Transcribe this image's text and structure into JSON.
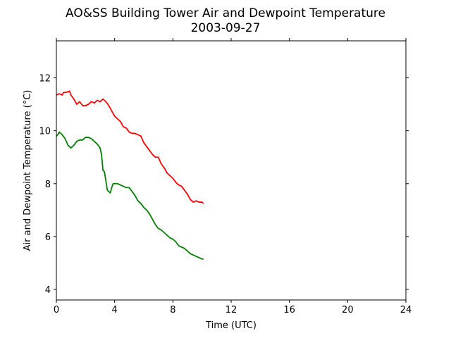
{
  "chart_data": {
    "type": "line",
    "title": "AO&SS Building Tower Air and Dewpoint Temperature",
    "subtitle": "2003-09-27",
    "xlabel": "Time (UTC)",
    "ylabel": "Air and Dewpoint Temperature (°C)",
    "xlim": [
      0,
      24
    ],
    "ylim": [
      3.6,
      13.4
    ],
    "xticks": [
      0,
      4,
      8,
      12,
      16,
      20,
      24
    ],
    "yticks": [
      4,
      6,
      8,
      10,
      12
    ],
    "grid": false,
    "series": [
      {
        "color": "#ff0000",
        "x": [
          0.0,
          0.2,
          0.4,
          0.5,
          0.7,
          0.9,
          1.0,
          1.2,
          1.4,
          1.6,
          1.8,
          2.0,
          2.2,
          2.4,
          2.6,
          2.8,
          3.0,
          3.2,
          3.4,
          3.6,
          3.8,
          4.0,
          4.2,
          4.4,
          4.6,
          4.8,
          5.0,
          5.2,
          5.4,
          5.6,
          5.8,
          6.0,
          6.2,
          6.4,
          6.6,
          6.8,
          7.0,
          7.2,
          7.4,
          7.6,
          7.8,
          8.0,
          8.2,
          8.4,
          8.6,
          8.8,
          9.0,
          9.2,
          9.4,
          9.6,
          9.8,
          10.0,
          10.1
        ],
        "y": [
          11.35,
          11.4,
          11.35,
          11.45,
          11.45,
          11.5,
          11.35,
          11.2,
          11.0,
          11.1,
          10.95,
          10.95,
          11.0,
          11.1,
          11.05,
          11.15,
          11.1,
          11.2,
          11.1,
          10.95,
          10.75,
          10.55,
          10.45,
          10.35,
          10.15,
          10.1,
          9.95,
          9.9,
          9.9,
          9.85,
          9.8,
          9.55,
          9.4,
          9.25,
          9.1,
          9.0,
          9.0,
          8.75,
          8.6,
          8.4,
          8.3,
          8.2,
          8.05,
          7.95,
          7.9,
          7.75,
          7.6,
          7.4,
          7.3,
          7.35,
          7.3,
          7.3,
          7.25
        ]
      },
      {
        "color": "#008000",
        "x": [
          0.0,
          0.1,
          0.2,
          0.3,
          0.4,
          0.6,
          0.8,
          1.0,
          1.2,
          1.4,
          1.6,
          1.8,
          2.0,
          2.2,
          2.4,
          2.6,
          2.8,
          3.0,
          3.1,
          3.2,
          3.3,
          3.4,
          3.5,
          3.6,
          3.7,
          3.8,
          3.9,
          4.0,
          4.2,
          4.4,
          4.6,
          4.8,
          5.0,
          5.2,
          5.4,
          5.6,
          5.8,
          6.0,
          6.2,
          6.4,
          6.6,
          6.8,
          7.0,
          7.2,
          7.4,
          7.6,
          7.8,
          8.0,
          8.2,
          8.4,
          8.6,
          8.8,
          9.0,
          9.2,
          9.4,
          9.6,
          9.8,
          10.0,
          10.1
        ],
        "y": [
          9.8,
          9.85,
          9.95,
          9.9,
          9.85,
          9.7,
          9.45,
          9.35,
          9.45,
          9.6,
          9.65,
          9.65,
          9.75,
          9.75,
          9.7,
          9.6,
          9.5,
          9.35,
          9.1,
          8.5,
          8.45,
          8.1,
          7.75,
          7.7,
          7.65,
          7.85,
          8.0,
          8.0,
          8.0,
          7.95,
          7.9,
          7.85,
          7.85,
          7.7,
          7.55,
          7.35,
          7.25,
          7.1,
          7.0,
          6.85,
          6.65,
          6.45,
          6.3,
          6.25,
          6.15,
          6.05,
          5.95,
          5.9,
          5.8,
          5.65,
          5.6,
          5.55,
          5.45,
          5.35,
          5.3,
          5.25,
          5.2,
          5.15,
          5.15
        ]
      }
    ]
  }
}
